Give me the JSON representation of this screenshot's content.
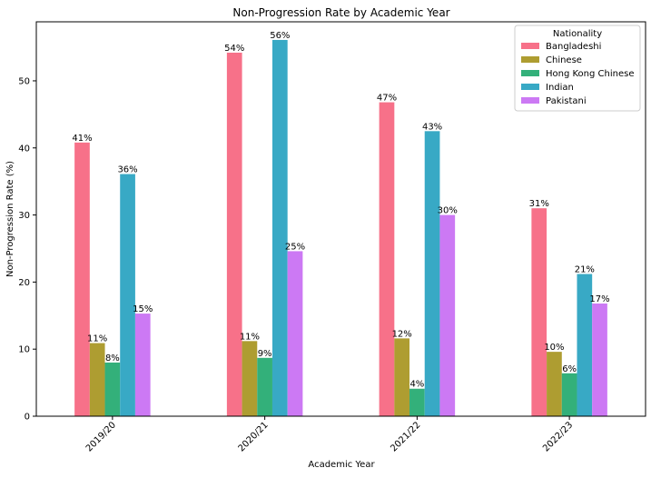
{
  "chart_data": {
    "type": "bar",
    "title": "Non-Progression Rate by Academic Year",
    "xlabel": "Academic Year",
    "ylabel": "Non-Progression Rate (%)",
    "categories": [
      "2019/20",
      "2020/21",
      "2021/22",
      "2022/23"
    ],
    "yticks": [
      0,
      10,
      20,
      30,
      40,
      50
    ],
    "ylim": [
      0,
      58.8
    ],
    "grid": false,
    "legend": {
      "title": "Nationality",
      "placement": "top-right"
    },
    "series": [
      {
        "name": "Bangladeshi",
        "color": "#f77189",
        "values": [
          40.8,
          54.2,
          46.8,
          31.0
        ],
        "labels": [
          "41%",
          "54%",
          "47%",
          "31%"
        ]
      },
      {
        "name": "Chinese",
        "color": "#ae9d31",
        "values": [
          10.9,
          11.2,
          11.6,
          9.6
        ],
        "labels": [
          "11%",
          "11%",
          "12%",
          "10%"
        ]
      },
      {
        "name": "Hong Kong Chinese",
        "color": "#33b07a",
        "values": [
          8.0,
          8.7,
          4.1,
          6.4
        ],
        "labels": [
          "8%",
          "9%",
          "4%",
          "6%"
        ]
      },
      {
        "name": "Indian",
        "color": "#38a9c5",
        "values": [
          36.1,
          56.1,
          42.5,
          21.2
        ],
        "labels": [
          "36%",
          "56%",
          "43%",
          "21%"
        ]
      },
      {
        "name": "Pakistani",
        "color": "#cc79f4",
        "values": [
          15.3,
          24.6,
          30.0,
          16.8
        ],
        "labels": [
          "15%",
          "25%",
          "30%",
          "17%"
        ]
      }
    ]
  }
}
